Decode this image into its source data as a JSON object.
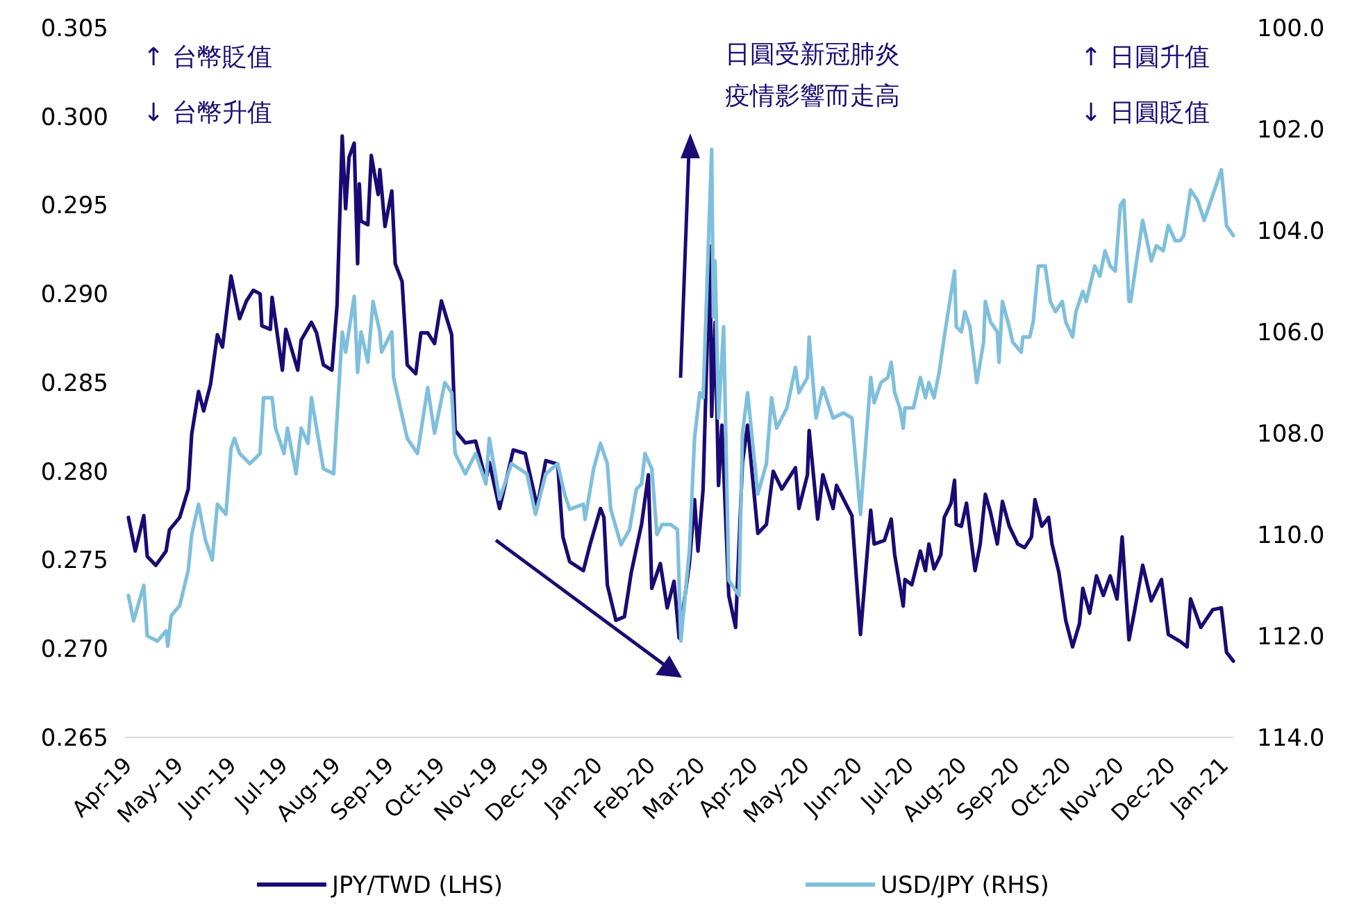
{
  "chart_data": {
    "type": "line",
    "xlim": [
      "2019-04-01",
      "2021-01-08"
    ],
    "xticks": [
      {
        "value": "2019-04-01",
        "label": "Apr-19"
      },
      {
        "value": "2019-05-01",
        "label": "May-19"
      },
      {
        "value": "2019-06-01",
        "label": "Jun-19"
      },
      {
        "value": "2019-07-01",
        "label": "Jul-19"
      },
      {
        "value": "2019-08-01",
        "label": "Aug-19"
      },
      {
        "value": "2019-09-01",
        "label": "Sep-19"
      },
      {
        "value": "2019-10-01",
        "label": "Oct-19"
      },
      {
        "value": "2019-11-01",
        "label": "Nov-19"
      },
      {
        "value": "2019-12-01",
        "label": "Dec-19"
      },
      {
        "value": "2020-01-01",
        "label": "Jan-20"
      },
      {
        "value": "2020-02-01",
        "label": "Feb-20"
      },
      {
        "value": "2020-03-01",
        "label": "Mar-20"
      },
      {
        "value": "2020-04-01",
        "label": "Apr-20"
      },
      {
        "value": "2020-05-01",
        "label": "May-20"
      },
      {
        "value": "2020-06-01",
        "label": "Jun-20"
      },
      {
        "value": "2020-07-01",
        "label": "Jul-20"
      },
      {
        "value": "2020-08-01",
        "label": "Aug-20"
      },
      {
        "value": "2020-09-01",
        "label": "Sep-20"
      },
      {
        "value": "2020-10-01",
        "label": "Oct-20"
      },
      {
        "value": "2020-11-01",
        "label": "Nov-20"
      },
      {
        "value": "2020-12-01",
        "label": "Dec-20"
      },
      {
        "value": "2021-01-01",
        "label": "Jan-21"
      }
    ],
    "ylim": [
      0.265,
      0.305
    ],
    "yticks": [
      {
        "value": 0.265,
        "label": "0.265"
      },
      {
        "value": 0.27,
        "label": "0.270"
      },
      {
        "value": 0.275,
        "label": "0.275"
      },
      {
        "value": 0.28,
        "label": "0.280"
      },
      {
        "value": 0.285,
        "label": "0.285"
      },
      {
        "value": 0.29,
        "label": "0.290"
      },
      {
        "value": 0.295,
        "label": "0.295"
      },
      {
        "value": 0.3,
        "label": "0.300"
      },
      {
        "value": 0.305,
        "label": "0.305"
      }
    ],
    "y2lim": [
      114,
      100
    ],
    "y2ticks": [
      {
        "value": 100,
        "label": "100.0"
      },
      {
        "value": 102,
        "label": "102.0"
      },
      {
        "value": 104,
        "label": "104.0"
      },
      {
        "value": 106,
        "label": "106.0"
      },
      {
        "value": 108,
        "label": "108.0"
      },
      {
        "value": 110,
        "label": "110.0"
      },
      {
        "value": 112,
        "label": "112.0"
      },
      {
        "value": 114,
        "label": "114.0"
      }
    ],
    "grid": false,
    "legend": "bottom",
    "marker": "none",
    "line_style": "solid",
    "annotations": [
      "↑ 台幣貶值",
      "↓ 台幣升值",
      "日圓受新冠肺炎",
      "疫情影響而走高",
      "↑ 日圓升值",
      "↓ 日圓貶值"
    ],
    "series": [
      {
        "name": "JPY/TWD (LHS)",
        "color": "#1b0a73",
        "x": [
          "2019-04-03",
          "2019-04-07",
          "2019-04-12",
          "2019-04-14",
          "2019-04-19",
          "2019-04-25",
          "2019-04-27",
          "2019-05-03",
          "2019-05-08",
          "2019-05-10",
          "2019-05-14",
          "2019-05-17",
          "2019-05-21",
          "2019-05-25",
          "2019-05-28",
          "2019-06-02",
          "2019-06-07",
          "2019-06-11",
          "2019-06-15",
          "2019-06-19",
          "2019-06-20",
          "2019-06-25",
          "2019-06-26",
          "2019-07-02",
          "2019-07-04",
          "2019-07-11",
          "2019-07-13",
          "2019-07-19",
          "2019-07-22",
          "2019-07-26",
          "2019-07-31",
          "2019-08-03",
          "2019-08-06",
          "2019-08-08",
          "2019-08-10",
          "2019-08-13",
          "2019-08-15",
          "2019-08-16",
          "2019-08-17",
          "2019-08-21",
          "2019-08-23",
          "2019-08-27",
          "2019-08-28",
          "2019-08-31",
          "2019-09-04",
          "2019-09-06",
          "2019-09-10",
          "2019-09-13",
          "2019-09-18",
          "2019-09-21",
          "2019-09-25",
          "2019-09-29",
          "2019-10-03",
          "2019-10-09",
          "2019-10-11",
          "2019-10-17",
          "2019-10-23",
          "2019-10-29",
          "2019-10-31",
          "2019-11-06",
          "2019-11-14",
          "2019-11-21",
          "2019-11-28",
          "2019-12-03",
          "2019-12-10",
          "2019-12-13",
          "2019-12-17",
          "2019-12-25",
          "2019-12-29",
          "2020-01-04",
          "2020-01-06",
          "2020-01-08",
          "2020-01-13",
          "2020-01-18",
          "2020-01-22",
          "2020-01-28",
          "2020-02-01",
          "2020-02-03",
          "2020-02-08",
          "2020-02-12",
          "2020-02-16",
          "2020-02-19",
          "2020-02-25",
          "2020-02-28",
          "2020-03-01",
          "2020-03-04",
          "2020-03-08",
          "2020-03-09",
          "2020-03-11",
          "2020-03-13",
          "2020-03-15",
          "2020-03-19",
          "2020-03-23",
          "2020-03-27",
          "2020-03-30",
          "2020-04-05",
          "2020-04-10",
          "2020-04-14",
          "2020-04-19",
          "2020-04-27",
          "2020-04-29",
          "2020-05-04",
          "2020-05-05",
          "2020-05-10",
          "2020-05-13",
          "2020-05-19",
          "2020-05-21",
          "2020-05-30",
          "2020-06-04",
          "2020-06-10",
          "2020-06-12",
          "2020-06-18",
          "2020-06-22",
          "2020-06-24",
          "2020-06-29",
          "2020-06-30",
          "2020-07-04",
          "2020-07-09",
          "2020-07-12",
          "2020-07-14",
          "2020-07-17",
          "2020-07-21",
          "2020-07-23",
          "2020-07-27",
          "2020-07-29",
          "2020-07-30",
          "2020-08-02",
          "2020-08-05",
          "2020-08-10",
          "2020-08-13",
          "2020-08-16",
          "2020-08-19",
          "2020-08-23",
          "2020-08-26",
          "2020-08-30",
          "2020-09-04",
          "2020-09-08",
          "2020-09-12",
          "2020-09-14",
          "2020-09-18",
          "2020-09-22",
          "2020-09-24",
          "2020-09-28",
          "2020-10-02",
          "2020-10-06",
          "2020-10-10",
          "2020-10-12",
          "2020-10-16",
          "2020-10-20",
          "2020-10-24",
          "2020-10-28",
          "2020-11-01",
          "2020-11-04",
          "2020-11-08",
          "2020-11-11",
          "2020-11-16",
          "2020-11-21",
          "2020-11-27",
          "2020-12-01",
          "2020-12-08",
          "2020-12-12",
          "2020-12-14",
          "2020-12-20",
          "2020-12-27",
          "2021-01-01",
          "2021-01-04",
          "2021-01-08"
        ],
        "values": [
          0.2774,
          0.2755,
          0.2775,
          0.2752,
          0.2747,
          0.2755,
          0.2767,
          0.2774,
          0.279,
          0.2821,
          0.2845,
          0.2834,
          0.2849,
          0.2877,
          0.287,
          0.291,
          0.2886,
          0.2896,
          0.2902,
          0.29,
          0.2882,
          0.288,
          0.2898,
          0.2857,
          0.288,
          0.2857,
          0.2874,
          0.2884,
          0.2878,
          0.286,
          0.2857,
          0.2894,
          0.2989,
          0.2948,
          0.2977,
          0.2985,
          0.2917,
          0.2962,
          0.2941,
          0.2939,
          0.2978,
          0.2956,
          0.297,
          0.2938,
          0.2958,
          0.2917,
          0.2907,
          0.286,
          0.2855,
          0.2878,
          0.2878,
          0.2872,
          0.2896,
          0.2877,
          0.2823,
          0.2816,
          0.2817,
          0.2795,
          0.2805,
          0.2779,
          0.2812,
          0.281,
          0.278,
          0.2806,
          0.2804,
          0.2763,
          0.2749,
          0.2744,
          0.2759,
          0.2779,
          0.2774,
          0.2736,
          0.2716,
          0.2718,
          0.2743,
          0.277,
          0.2798,
          0.2734,
          0.2748,
          0.2723,
          0.2738,
          0.2706,
          0.2748,
          0.2784,
          0.2755,
          0.279,
          0.2927,
          0.2831,
          0.2884,
          0.2792,
          0.2826,
          0.273,
          0.2712,
          0.2805,
          0.2826,
          0.2765,
          0.277,
          0.28,
          0.279,
          0.2802,
          0.2779,
          0.2798,
          0.2823,
          0.2773,
          0.2798,
          0.2779,
          0.2792,
          0.2775,
          0.2708,
          0.2778,
          0.2759,
          0.2761,
          0.2773,
          0.2753,
          0.2724,
          0.2739,
          0.2736,
          0.2755,
          0.2744,
          0.2759,
          0.2745,
          0.2753,
          0.2774,
          0.2782,
          0.2795,
          0.277,
          0.2769,
          0.2782,
          0.2744,
          0.2759,
          0.2787,
          0.2777,
          0.2759,
          0.2783,
          0.2769,
          0.2759,
          0.2757,
          0.2763,
          0.2784,
          0.2769,
          0.2774,
          0.2759,
          0.2743,
          0.2716,
          0.2701,
          0.2714,
          0.2734,
          0.272,
          0.2741,
          0.273,
          0.2741,
          0.2728,
          0.2763,
          0.2705,
          0.272,
          0.2747,
          0.2727,
          0.2739,
          0.2708,
          0.2704,
          0.2701,
          0.2728,
          0.2712,
          0.2722,
          0.2723,
          0.2698,
          0.2693
        ]
      },
      {
        "name": "USD/JPY (RHS)",
        "color": "#7fbfdc",
        "axis": "y2",
        "x": [
          "2019-04-03",
          "2019-04-06",
          "2019-04-12",
          "2019-04-14",
          "2019-04-20",
          "2019-04-25",
          "2019-04-26",
          "2019-04-28",
          "2019-05-03",
          "2019-05-08",
          "2019-05-10",
          "2019-05-14",
          "2019-05-18",
          "2019-05-22",
          "2019-05-25",
          "2019-05-30",
          "2019-06-02",
          "2019-06-04",
          "2019-06-07",
          "2019-06-13",
          "2019-06-19",
          "2019-06-21",
          "2019-06-26",
          "2019-06-28",
          "2019-07-03",
          "2019-07-05",
          "2019-07-10",
          "2019-07-13",
          "2019-07-17",
          "2019-07-19",
          "2019-07-22",
          "2019-07-26",
          "2019-08-01",
          "2019-08-06",
          "2019-08-08",
          "2019-08-13",
          "2019-08-15",
          "2019-08-17",
          "2019-08-21",
          "2019-08-24",
          "2019-08-28",
          "2019-08-29",
          "2019-09-04",
          "2019-09-05",
          "2019-09-13",
          "2019-09-19",
          "2019-09-25",
          "2019-09-29",
          "2019-10-05",
          "2019-10-09",
          "2019-10-11",
          "2019-10-17",
          "2019-10-23",
          "2019-10-29",
          "2019-10-31",
          "2019-11-06",
          "2019-11-13",
          "2019-11-22",
          "2019-11-27",
          "2019-12-03",
          "2019-12-10",
          "2019-12-14",
          "2019-12-17",
          "2019-12-25",
          "2019-12-26",
          "2019-12-31",
          "2020-01-04",
          "2020-01-08",
          "2020-01-10",
          "2020-01-16",
          "2020-01-21",
          "2020-01-25",
          "2020-01-28",
          "2020-01-30",
          "2020-02-03",
          "2020-02-06",
          "2020-02-09",
          "2020-02-14",
          "2020-02-18",
          "2020-02-20",
          "2020-02-25",
          "2020-02-28",
          "2020-03-02",
          "2020-03-04",
          "2020-03-09",
          "2020-03-10",
          "2020-03-11",
          "2020-03-13",
          "2020-03-16",
          "2020-03-19",
          "2020-03-25",
          "2020-03-27",
          "2020-03-30",
          "2020-04-05",
          "2020-04-10",
          "2020-04-13",
          "2020-04-16",
          "2020-04-22",
          "2020-04-27",
          "2020-04-29",
          "2020-05-04",
          "2020-05-05",
          "2020-05-09",
          "2020-05-13",
          "2020-05-19",
          "2020-05-25",
          "2020-05-30",
          "2020-06-04",
          "2020-06-10",
          "2020-06-12",
          "2020-06-16",
          "2020-06-20",
          "2020-06-22",
          "2020-06-24",
          "2020-06-27",
          "2020-06-29",
          "2020-06-30",
          "2020-07-05",
          "2020-07-09",
          "2020-07-12",
          "2020-07-14",
          "2020-07-17",
          "2020-07-20",
          "2020-07-23",
          "2020-07-29",
          "2020-07-30",
          "2020-08-02",
          "2020-08-04",
          "2020-08-07",
          "2020-08-11",
          "2020-08-15",
          "2020-08-16",
          "2020-08-19",
          "2020-08-23",
          "2020-08-24",
          "2020-08-26",
          "2020-08-30",
          "2020-09-01",
          "2020-09-06",
          "2020-09-07",
          "2020-09-11",
          "2020-09-13",
          "2020-09-16",
          "2020-09-20",
          "2020-09-23",
          "2020-09-26",
          "2020-09-30",
          "2020-10-02",
          "2020-10-06",
          "2020-10-08",
          "2020-10-12",
          "2020-10-14",
          "2020-10-19",
          "2020-10-22",
          "2020-10-25",
          "2020-10-28",
          "2020-10-31",
          "2020-11-03",
          "2020-11-05",
          "2020-11-08",
          "2020-11-09",
          "2020-11-12",
          "2020-11-16",
          "2020-11-21",
          "2020-11-24",
          "2020-11-28",
          "2020-12-01",
          "2020-12-05",
          "2020-12-08",
          "2020-12-10",
          "2020-12-14",
          "2020-12-18",
          "2020-12-22",
          "2020-12-27",
          "2021-01-01",
          "2021-01-04",
          "2021-01-08"
        ],
        "values": [
          111.2,
          111.7,
          111.0,
          112.0,
          112.1,
          111.9,
          112.2,
          111.6,
          111.4,
          110.7,
          110.0,
          109.4,
          110.1,
          110.5,
          109.4,
          109.6,
          108.3,
          108.1,
          108.4,
          108.6,
          108.4,
          107.3,
          107.3,
          107.9,
          108.4,
          107.9,
          108.8,
          107.9,
          108.2,
          107.3,
          107.9,
          108.7,
          108.8,
          106.0,
          106.4,
          105.3,
          106.8,
          106.0,
          106.6,
          105.4,
          106.0,
          106.4,
          106.0,
          106.9,
          108.1,
          108.4,
          107.1,
          108.0,
          107.0,
          107.2,
          108.4,
          108.8,
          108.4,
          109.0,
          108.1,
          109.3,
          108.6,
          108.8,
          109.6,
          108.8,
          108.6,
          109.2,
          109.5,
          109.4,
          109.7,
          108.7,
          108.2,
          108.6,
          109.5,
          110.2,
          109.9,
          109.1,
          109.0,
          108.4,
          108.7,
          110.0,
          109.8,
          109.8,
          109.9,
          112.1,
          110.3,
          108.1,
          107.2,
          107.3,
          102.4,
          105.7,
          104.6,
          107.7,
          105.9,
          110.9,
          111.2,
          108.0,
          107.2,
          109.2,
          108.6,
          107.3,
          107.9,
          107.5,
          106.7,
          107.2,
          106.9,
          106.1,
          107.7,
          107.1,
          107.7,
          107.6,
          107.7,
          109.6,
          106.9,
          107.4,
          107.0,
          106.9,
          106.6,
          107.2,
          107.5,
          107.9,
          107.5,
          107.5,
          106.9,
          107.3,
          107.0,
          107.3,
          106.8,
          106.1,
          104.8,
          105.9,
          106.0,
          105.6,
          105.9,
          107.0,
          106.2,
          105.4,
          105.8,
          106.0,
          106.6,
          105.4,
          105.9,
          106.2,
          106.4,
          106.1,
          106.1,
          105.8,
          104.7,
          104.7,
          105.4,
          105.6,
          105.4,
          105.8,
          106.1,
          105.6,
          105.2,
          105.4,
          104.7,
          104.9,
          104.4,
          104.7,
          104.8,
          103.5,
          103.4,
          105.4,
          105.4,
          104.7,
          103.8,
          104.6,
          104.3,
          104.4,
          103.9,
          104.2,
          104.2,
          104.1,
          103.2,
          103.4,
          103.8,
          103.3,
          102.8,
          103.9,
          104.1
        ]
      }
    ]
  }
}
